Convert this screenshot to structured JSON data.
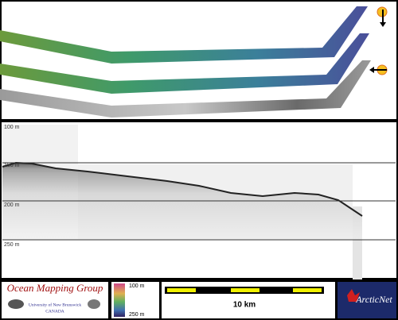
{
  "depth_labels": [
    "100 m",
    "150 m",
    "200 m",
    "250 m"
  ],
  "logo": {
    "title": "Ocean Mapping Group",
    "university": "University of New Brunswick",
    "country": "CANADA"
  },
  "colorbar": {
    "top": "100 m",
    "bottom": "250 m"
  },
  "scale_bar": {
    "label": "10 km"
  },
  "partner": "ArcticNet"
}
